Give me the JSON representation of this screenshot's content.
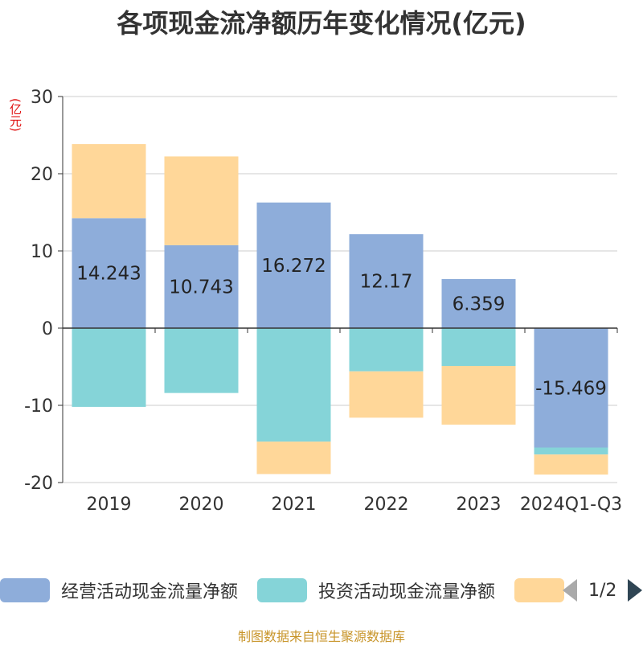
{
  "title": "各项现金流净额历年变化情况(亿元)",
  "unit_label": "(亿元)",
  "source": "制图数据来自恒生聚源数据库",
  "pager": "1/2",
  "legend": {
    "items": [
      {
        "label": "经营活动现金流量净额",
        "color": "#8eadda"
      },
      {
        "label": "投资活动现金流量净额",
        "color": "#85d4d8"
      },
      {
        "label": "",
        "color": "#ffd799"
      }
    ]
  },
  "chart_data": {
    "type": "bar",
    "stacked": true,
    "categories": [
      "2019",
      "2020",
      "2021",
      "2022",
      "2023",
      "2024Q1-Q3"
    ],
    "ylim": [
      -20,
      30
    ],
    "yticks": [
      30,
      20,
      10,
      0,
      -10,
      -20
    ],
    "grid": true,
    "series": [
      {
        "name": "经营活动现金流量净额",
        "color": "#8eadda",
        "values": [
          14.243,
          10.743,
          16.272,
          12.17,
          6.359,
          -15.469
        ],
        "labels": [
          "14.243",
          "10.743",
          "16.272",
          "12.17",
          "6.359",
          "-15.469"
        ]
      },
      {
        "name": "投资活动现金流量净额",
        "color": "#85d4d8",
        "values": [
          -10.2,
          -8.4,
          -14.7,
          -5.6,
          -4.9,
          -0.9
        ]
      },
      {
        "color": "#ffd799",
        "values": [
          9.6,
          11.5,
          -4.2,
          -6.0,
          -7.6,
          -2.6
        ]
      }
    ]
  }
}
